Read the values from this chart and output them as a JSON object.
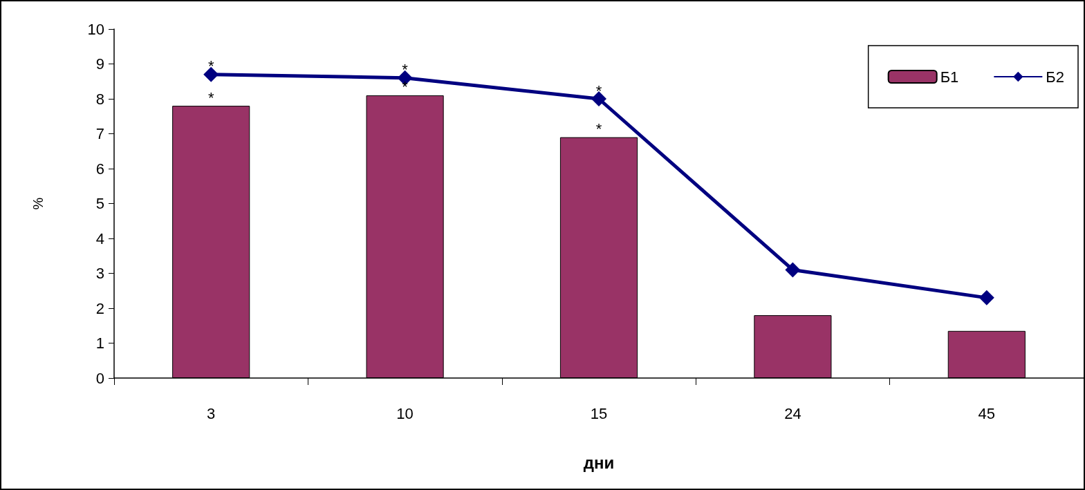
{
  "chart_data": {
    "type": "bar",
    "xlabel": "дни",
    "ylabel": "%",
    "categories": [
      "3",
      "10",
      "15",
      "24",
      "45"
    ],
    "series": [
      {
        "name": "Б1",
        "color": "#993366",
        "values": [
          7.8,
          8.1,
          6.9,
          1.8,
          1.35
        ]
      },
      {
        "name": "Б2",
        "type": "line",
        "color": "#000080",
        "values": [
          8.7,
          8.6,
          8.0,
          3.1,
          2.3
        ],
        "marker": "diamond"
      }
    ],
    "ylim": [
      0,
      10
    ],
    "yticks": [
      0,
      1,
      2,
      3,
      4,
      5,
      6,
      7,
      8,
      9,
      10
    ],
    "grid": false,
    "legend": "top right",
    "annotations": [
      {
        "text": "*",
        "x": "3",
        "y": 7.8
      },
      {
        "text": "*",
        "x": "10",
        "y": 8.1
      },
      {
        "text": "*",
        "x": "15",
        "y": 6.9
      },
      {
        "text": "*",
        "x": "3",
        "y": 8.7
      },
      {
        "text": "*",
        "x": "10",
        "y": 8.6
      },
      {
        "text": "*",
        "x": "15",
        "y": 8.0
      }
    ]
  }
}
